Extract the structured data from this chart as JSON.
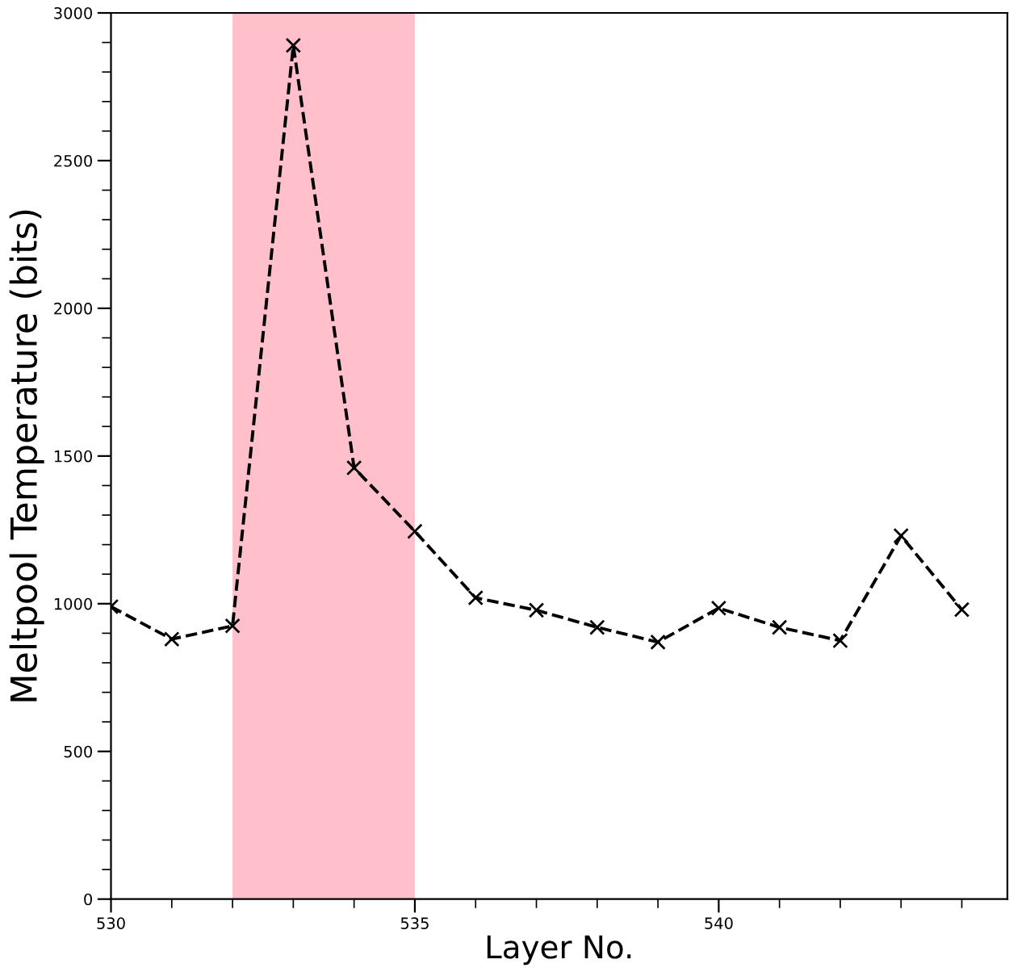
{
  "chart_data": {
    "type": "line",
    "xlabel": "Layer No.",
    "ylabel": "Meltpool Temperature (bits)",
    "x": [
      530,
      531,
      532,
      533,
      534,
      535,
      536,
      537,
      538,
      539,
      540,
      541,
      542,
      543,
      544
    ],
    "series": [
      {
        "color": "#000000",
        "values": [
          990,
          880,
          925,
          2890,
          1460,
          1245,
          1020,
          978,
          920,
          870,
          985,
          920,
          875,
          1230,
          980
        ]
      }
    ],
    "marker": "cross",
    "line_style": "dashed",
    "xlim": [
      530,
      544.75
    ],
    "xticks": [
      530,
      {
        "value": 531,
        "label": null
      },
      {
        "value": 532,
        "label": null
      },
      {
        "value": 533,
        "label": null
      },
      {
        "value": 534,
        "label": null
      },
      535,
      {
        "value": 536,
        "label": null
      },
      {
        "value": 537,
        "label": null
      },
      {
        "value": 538,
        "label": null
      },
      {
        "value": 539,
        "label": null
      },
      540,
      {
        "value": 541,
        "label": null
      },
      {
        "value": 542,
        "label": null
      },
      {
        "value": 543,
        "label": null
      },
      {
        "value": 544,
        "label": null
      }
    ],
    "ylim": [
      0,
      3000
    ],
    "yticks": [
      0,
      {
        "value": 100,
        "label": null
      },
      {
        "value": 200,
        "label": null
      },
      {
        "value": 300,
        "label": null
      },
      {
        "value": 400,
        "label": null
      },
      500,
      {
        "value": 600,
        "label": null
      },
      {
        "value": 700,
        "label": null
      },
      {
        "value": 800,
        "label": null
      },
      {
        "value": 900,
        "label": null
      },
      1000,
      {
        "value": 1100,
        "label": null
      },
      {
        "value": 1200,
        "label": null
      },
      {
        "value": 1300,
        "label": null
      },
      {
        "value": 1400,
        "label": null
      },
      1500,
      {
        "value": 1600,
        "label": null
      },
      {
        "value": 1700,
        "label": null
      },
      {
        "value": 1800,
        "label": null
      },
      {
        "value": 1900,
        "label": null
      },
      2000,
      {
        "value": 2100,
        "label": null
      },
      {
        "value": 2200,
        "label": null
      },
      {
        "value": 2300,
        "label": null
      },
      {
        "value": 2400,
        "label": null
      },
      2500,
      {
        "value": 2600,
        "label": null
      },
      {
        "value": 2700,
        "label": null
      },
      {
        "value": 2800,
        "label": null
      },
      {
        "value": 2900,
        "label": null
      },
      3000
    ],
    "bands": [
      {
        "axis": "x",
        "from": 532,
        "to": 535,
        "color": "#ffc0cb"
      }
    ],
    "grid": false,
    "legend": false
  }
}
